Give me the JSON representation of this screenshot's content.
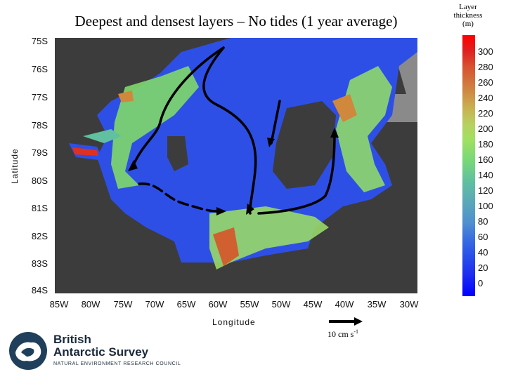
{
  "title": "Deepest and densest layers – No tides (1 year average)",
  "colorbar": {
    "title_lines": [
      "Layer",
      "thickness",
      "(m)"
    ],
    "labels": [
      "300",
      "280",
      "260",
      "240",
      "220",
      "200",
      "180",
      "160",
      "140",
      "120",
      "100",
      "80",
      "60",
      "40",
      "20",
      "0"
    ]
  },
  "y_axis": {
    "title": "Latitude",
    "ticks": [
      "75S",
      "76S",
      "77S",
      "78S",
      "79S",
      "80S",
      "81S",
      "82S",
      "83S",
      "84S"
    ]
  },
  "x_axis": {
    "title": "Longitude",
    "ticks": [
      "85W",
      "80W",
      "75W",
      "70W",
      "65W",
      "60W",
      "55W",
      "50W",
      "45W",
      "40W",
      "35W",
      "30W"
    ]
  },
  "reference_vector": {
    "label": "10 cm s",
    "exponent": "-1"
  },
  "logo": {
    "line1": "British",
    "line2": "Antarctic Survey",
    "line3": "NATURAL ENVIRONMENT RESEARCH COUNCIL"
  }
}
